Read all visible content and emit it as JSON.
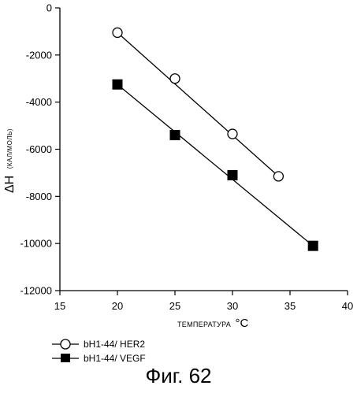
{
  "caption": "Фиг. 62",
  "chart_data": {
    "type": "scatter",
    "xlabel": "ТЕМПЕРАТУРА",
    "xlabel_unit": "°C",
    "ylabel": "ΔH",
    "ylabel_unit": "(КАЛ/МОЛЬ)",
    "xlim": [
      15,
      40
    ],
    "ylim": [
      -12000,
      0
    ],
    "xticks": [
      15,
      20,
      25,
      30,
      35,
      40
    ],
    "yticks": [
      0,
      -2000,
      -4000,
      -6000,
      -8000,
      -10000,
      -12000
    ],
    "grid": false,
    "legend_position": "bottom-left",
    "series": [
      {
        "name": "bH1-44/ HER2",
        "marker": "open-circle",
        "color": "#000000",
        "x": [
          20,
          25,
          30,
          34
        ],
        "y": [
          -1050,
          -3000,
          -5350,
          -7150
        ],
        "fit_line": [
          [
            20,
            -1050
          ],
          [
            34,
            -7150
          ]
        ]
      },
      {
        "name": "bH1-44/ VEGF",
        "marker": "filled-square",
        "color": "#000000",
        "x": [
          20,
          25,
          30,
          37
        ],
        "y": [
          -3250,
          -5400,
          -7100,
          -10100
        ],
        "fit_line": [
          [
            20,
            -3250
          ],
          [
            37,
            -10100
          ]
        ]
      }
    ]
  }
}
